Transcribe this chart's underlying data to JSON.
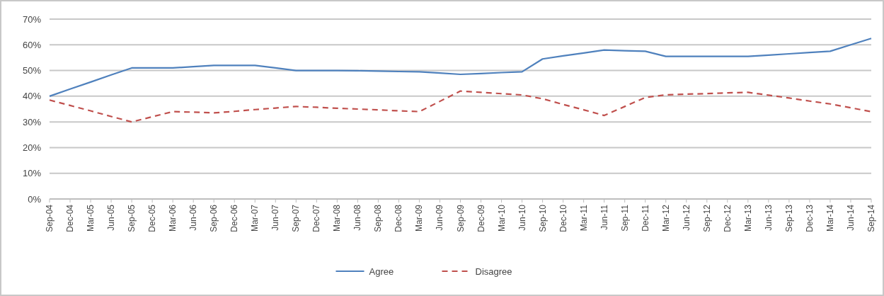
{
  "chart_data": {
    "type": "line",
    "categories": [
      "Sep-04",
      "Dec-04",
      "Mar-05",
      "Jun-05",
      "Sep-05",
      "Dec-05",
      "Mar-06",
      "Jun-06",
      "Sep-06",
      "Dec-06",
      "Mar-07",
      "Jun-07",
      "Sep-07",
      "Dec-07",
      "Mar-08",
      "Jun-08",
      "Sep-08",
      "Dec-08",
      "Mar-09",
      "Jun-09",
      "Sep-09",
      "Dec-09",
      "Mar-10",
      "Jun-10",
      "Sep-10",
      "Dec-10",
      "Mar-11",
      "Jun-11",
      "Sep-11",
      "Dec-11",
      "Mar-12",
      "Jun-12",
      "Sep-12",
      "Dec-12",
      "Mar-13",
      "Jun-13",
      "Sep-13",
      "Dec-13",
      "Mar-14",
      "Jun-14",
      "Sep-14"
    ],
    "series": [
      {
        "name": "Agree",
        "color": "#4f81bd",
        "line_style": "solid",
        "values": [
          40,
          42.8,
          45.5,
          48.3,
          51,
          51,
          51,
          51.5,
          52,
          52,
          52,
          51,
          50,
          50,
          50,
          49.9,
          49.8,
          49.6,
          49.5,
          49,
          48.5,
          48.8,
          49.2,
          49.5,
          54.5,
          55.7,
          56.8,
          58,
          57.7,
          57.5,
          55.5,
          55.5,
          55.5,
          55.5,
          55.5,
          56,
          56.5,
          57,
          57.5,
          60,
          62.5
        ]
      },
      {
        "name": "Disagree",
        "color": "#c0504d",
        "line_style": "dashed",
        "values": [
          38.5,
          36.4,
          34.3,
          32.1,
          30,
          32,
          34,
          33.8,
          33.5,
          34.1,
          34.8,
          35.4,
          36,
          35.7,
          35.3,
          35,
          34.7,
          34.3,
          34,
          38,
          42,
          41.5,
          41,
          40.5,
          39,
          36.8,
          34.7,
          32.5,
          36,
          39.5,
          40.5,
          40.8,
          41,
          41.3,
          41.5,
          40.4,
          39.3,
          38.1,
          37,
          35.5,
          34
        ]
      }
    ],
    "ylim": [
      0,
      70
    ],
    "yticks": [
      {
        "value": 0,
        "label": "0%"
      },
      {
        "value": 10,
        "label": "10%"
      },
      {
        "value": 20,
        "label": "20%"
      },
      {
        "value": 30,
        "label": "30%"
      },
      {
        "value": 40,
        "label": "40%"
      },
      {
        "value": 50,
        "label": "50%"
      },
      {
        "value": 60,
        "label": "60%"
      },
      {
        "value": 70,
        "label": "70%"
      }
    ],
    "grid": "y",
    "legend": "bottom",
    "marker": "none"
  }
}
